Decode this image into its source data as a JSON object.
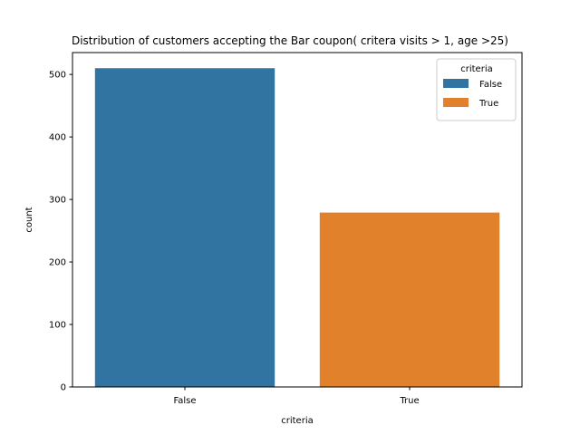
{
  "chart_data": {
    "type": "bar",
    "title": "Distribution of customers accepting the Bar coupon( critera visits > 1, age >25)",
    "xlabel": "criteria",
    "ylabel": "count",
    "categories": [
      "False",
      "True"
    ],
    "values": [
      510,
      279
    ],
    "colors": [
      "#3274a1",
      "#e1812c"
    ],
    "ylim": [
      0,
      535
    ],
    "yticks": [
      0,
      100,
      200,
      300,
      400,
      500
    ],
    "grid": false,
    "legend": {
      "title": "criteria",
      "placement": "top-right",
      "entries": [
        {
          "label": "False",
          "color": "#3274a1"
        },
        {
          "label": "True",
          "color": "#e1812c"
        }
      ]
    }
  }
}
